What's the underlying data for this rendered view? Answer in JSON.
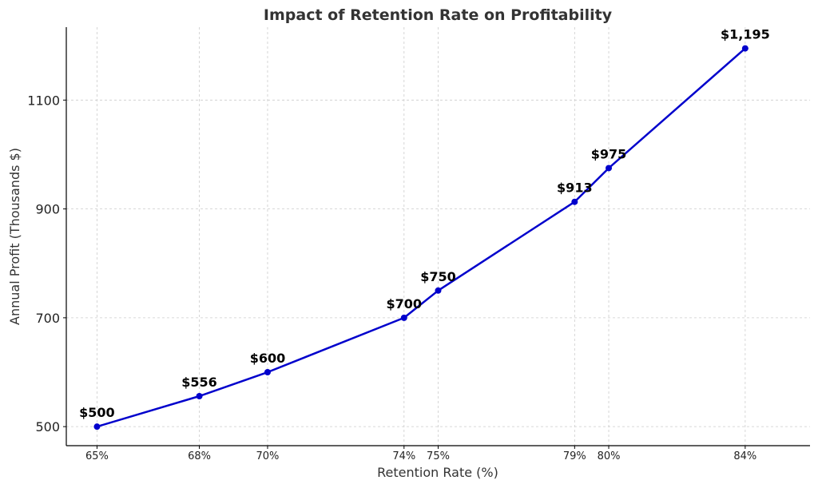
{
  "chart_data": {
    "type": "line",
    "title": "Impact of Retention Rate on Profitability",
    "xlabel": "Retention Rate (%)",
    "ylabel": "Annual Profit (Thousands $)",
    "x": [
      65,
      68,
      70,
      74,
      75,
      79,
      80,
      84
    ],
    "x_tick_labels": [
      "65%",
      "68%",
      "70%",
      "74%",
      "75%",
      "79%",
      "80%",
      "84%"
    ],
    "series": [
      {
        "values": [
          500,
          556,
          600,
          700,
          750,
          913,
          975,
          1195
        ],
        "color": "#0000cc",
        "marker": "circle"
      }
    ],
    "data_labels": [
      "$500",
      "$556",
      "$600",
      "$700",
      "$750",
      "$913",
      "$975",
      "$1,195"
    ],
    "y_ticks": [
      500,
      700,
      900,
      1100
    ],
    "y_tick_labels": [
      "500",
      "700",
      "900",
      "1100"
    ],
    "xlim": [
      64.1,
      85.9
    ],
    "ylim": [
      465,
      1234
    ],
    "grid": true
  }
}
